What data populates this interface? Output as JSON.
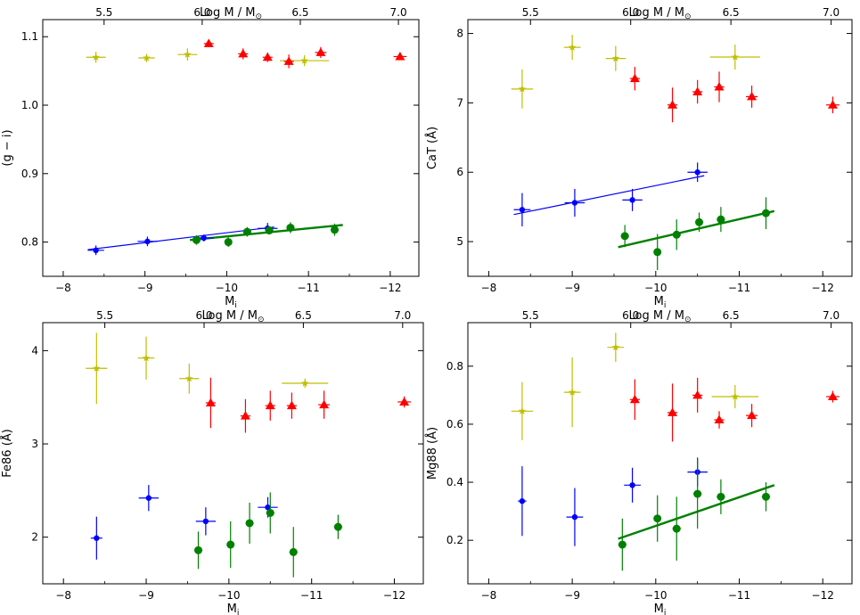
{
  "chart_data": [
    {
      "type": "scatter",
      "xlabel": "M",
      "xlabel_sub": "i",
      "ylabel": "(g − i)",
      "top_xlabel": "Log M / M",
      "top_xlabel_sub": "⊙",
      "xlim": [
        -7.75,
        -12.35
      ],
      "ylim": [
        0.75,
        1.125
      ],
      "xticks": [
        -8,
        -9,
        -10,
        -11,
        -12
      ],
      "xtick_labels": [
        "−8",
        "−9",
        "−10",
        "−11",
        "−12"
      ],
      "yticks": [
        0.8,
        0.9,
        1.0,
        1.1
      ],
      "ytick_labels": [
        "0.8",
        "0.9",
        "1.0",
        "1.1"
      ],
      "top_ticks": [
        {
          "x": -8.5,
          "label": "5.5"
        },
        {
          "x": -9.7,
          "label": "6.0"
        },
        {
          "x": -10.9,
          "label": "6.5"
        },
        {
          "x": -12.1,
          "label": "7.0"
        }
      ],
      "series": [
        {
          "name": "yellow",
          "color": "#bfbf00",
          "marker": "star",
          "points": [
            {
              "x": -8.4,
              "y": 1.07,
              "xerr": 0.12,
              "yerr": 0.008
            },
            {
              "x": -9.02,
              "y": 1.069,
              "xerr": 0.1,
              "yerr": 0.006
            },
            {
              "x": -9.52,
              "y": 1.074,
              "xerr": 0.12,
              "yerr": 0.009
            },
            {
              "x": -10.95,
              "y": 1.065,
              "xerr": 0.3,
              "yerr": 0.008
            }
          ]
        },
        {
          "name": "red",
          "color": "#ff0000",
          "marker": "triangle",
          "points": [
            {
              "x": -9.78,
              "y": 1.09,
              "xerr": 0.06,
              "yerr": 0.005
            },
            {
              "x": -10.2,
              "y": 1.075,
              "xerr": 0.06,
              "yerr": 0.008
            },
            {
              "x": -10.5,
              "y": 1.07,
              "xerr": 0.06,
              "yerr": 0.007
            },
            {
              "x": -10.76,
              "y": 1.064,
              "xerr": 0.06,
              "yerr": 0.01
            },
            {
              "x": -11.15,
              "y": 1.077,
              "xerr": 0.07,
              "yerr": 0.008
            },
            {
              "x": -12.12,
              "y": 1.071,
              "xerr": 0.08,
              "yerr": 0.004
            }
          ]
        },
        {
          "name": "blue",
          "color": "#0000ff",
          "marker": "circle",
          "points": [
            {
              "x": -8.4,
              "y": 0.788,
              "xerr": 0.1,
              "yerr": 0.007
            },
            {
              "x": -9.03,
              "y": 0.801,
              "xerr": 0.12,
              "yerr": 0.007
            },
            {
              "x": -9.72,
              "y": 0.806,
              "xerr": 0.12,
              "yerr": 0.005
            },
            {
              "x": -10.5,
              "y": 0.82,
              "xerr": 0.12,
              "yerr": 0.008
            }
          ]
        },
        {
          "name": "green",
          "color": "#008000",
          "marker": "circle",
          "points": [
            {
              "x": -9.63,
              "y": 0.803,
              "xerr": 0.05,
              "yerr": 0.007
            },
            {
              "x": -10.02,
              "y": 0.8,
              "xerr": 0.04,
              "yerr": 0.007
            },
            {
              "x": -10.25,
              "y": 0.815,
              "xerr": 0.05,
              "yerr": 0.007
            },
            {
              "x": -10.52,
              "y": 0.817,
              "xerr": 0.05,
              "yerr": 0.006
            },
            {
              "x": -10.78,
              "y": 0.821,
              "xerr": 0.05,
              "yerr": 0.008
            },
            {
              "x": -11.32,
              "y": 0.818,
              "xerr": 0.05,
              "yerr": 0.009
            }
          ]
        }
      ],
      "fits": [
        {
          "name": "blue-fit",
          "color": "#0000ff",
          "width": 1.2,
          "x": [
            -8.3,
            -10.58
          ],
          "y": [
            0.789,
            0.822
          ]
        },
        {
          "name": "green-fit",
          "color": "#008000",
          "width": 2.4,
          "x": [
            -9.55,
            -11.42
          ],
          "y": [
            0.803,
            0.825
          ]
        }
      ]
    },
    {
      "type": "scatter",
      "xlabel": "M",
      "xlabel_sub": "i",
      "ylabel": "CaT (Å)",
      "top_xlabel": "Log M / M",
      "top_xlabel_sub": "⊙",
      "xlim": [
        -7.75,
        -12.35
      ],
      "ylim": [
        4.5,
        8.2
      ],
      "xticks": [
        -8,
        -9,
        -10,
        -11,
        -12
      ],
      "xtick_labels": [
        "−8",
        "−9",
        "−10",
        "−11",
        "−12"
      ],
      "yticks": [
        5,
        6,
        7,
        8
      ],
      "ytick_labels": [
        "5",
        "6",
        "7",
        "8"
      ],
      "top_ticks": [
        {
          "x": -8.5,
          "label": "5.5"
        },
        {
          "x": -9.7,
          "label": "6.0"
        },
        {
          "x": -10.9,
          "label": "6.5"
        },
        {
          "x": -12.1,
          "label": "7.0"
        }
      ],
      "series": [
        {
          "name": "yellow",
          "color": "#bfbf00",
          "marker": "star",
          "points": [
            {
              "x": -8.4,
              "y": 7.2,
              "xerr": 0.13,
              "yerr": 0.28
            },
            {
              "x": -9.0,
              "y": 7.8,
              "xerr": 0.1,
              "yerr": 0.18
            },
            {
              "x": -9.52,
              "y": 7.64,
              "xerr": 0.12,
              "yerr": 0.18
            },
            {
              "x": -10.95,
              "y": 7.66,
              "xerr": 0.3,
              "yerr": 0.18
            }
          ]
        },
        {
          "name": "red",
          "color": "#ff0000",
          "marker": "triangle",
          "points": [
            {
              "x": -9.75,
              "y": 7.35,
              "xerr": 0.06,
              "yerr": 0.17
            },
            {
              "x": -10.2,
              "y": 6.97,
              "xerr": 0.06,
              "yerr": 0.25
            },
            {
              "x": -10.5,
              "y": 7.16,
              "xerr": 0.06,
              "yerr": 0.17
            },
            {
              "x": -10.76,
              "y": 7.23,
              "xerr": 0.06,
              "yerr": 0.22
            },
            {
              "x": -11.15,
              "y": 7.09,
              "xerr": 0.07,
              "yerr": 0.16
            },
            {
              "x": -12.12,
              "y": 6.97,
              "xerr": 0.08,
              "yerr": 0.12
            }
          ]
        },
        {
          "name": "blue",
          "color": "#0000ff",
          "marker": "circle",
          "points": [
            {
              "x": -8.4,
              "y": 5.46,
              "xerr": 0.1,
              "yerr": 0.24
            },
            {
              "x": -9.03,
              "y": 5.56,
              "xerr": 0.12,
              "yerr": 0.2
            },
            {
              "x": -9.72,
              "y": 5.6,
              "xerr": 0.12,
              "yerr": 0.16
            },
            {
              "x": -10.5,
              "y": 6.0,
              "xerr": 0.12,
              "yerr": 0.14
            }
          ]
        },
        {
          "name": "green",
          "color": "#008000",
          "marker": "circle",
          "points": [
            {
              "x": -9.63,
              "y": 5.08,
              "xerr": 0.05,
              "yerr": 0.16
            },
            {
              "x": -10.02,
              "y": 4.85,
              "xerr": 0.04,
              "yerr": 0.26
            },
            {
              "x": -10.25,
              "y": 5.1,
              "xerr": 0.05,
              "yerr": 0.22
            },
            {
              "x": -10.52,
              "y": 5.28,
              "xerr": 0.05,
              "yerr": 0.14
            },
            {
              "x": -10.78,
              "y": 5.32,
              "xerr": 0.05,
              "yerr": 0.18
            },
            {
              "x": -11.32,
              "y": 5.41,
              "xerr": 0.05,
              "yerr": 0.23
            }
          ]
        }
      ],
      "fits": [
        {
          "name": "blue-fit",
          "color": "#0000ff",
          "width": 1.2,
          "x": [
            -8.3,
            -10.58
          ],
          "y": [
            5.39,
            5.95
          ]
        },
        {
          "name": "green-fit",
          "color": "#008000",
          "width": 2.4,
          "x": [
            -9.55,
            -11.42
          ],
          "y": [
            4.92,
            5.44
          ]
        }
      ]
    },
    {
      "type": "scatter",
      "xlabel": "M",
      "xlabel_sub": "i",
      "ylabel": "Fe86 (Å)",
      "top_xlabel": "Log M / M",
      "top_xlabel_sub": "⊙",
      "xlim": [
        -7.75,
        -12.35
      ],
      "ylim": [
        1.5,
        4.3
      ],
      "xticks": [
        -8,
        -9,
        -10,
        -11,
        -12
      ],
      "xtick_labels": [
        "−8",
        "−9",
        "−10",
        "−11",
        "−12"
      ],
      "yticks": [
        2,
        3,
        4
      ],
      "ytick_labels": [
        "2",
        "3",
        "4"
      ],
      "top_ticks": [
        {
          "x": -8.5,
          "label": "5.5"
        },
        {
          "x": -9.7,
          "label": "6.0"
        },
        {
          "x": -10.9,
          "label": "6.5"
        },
        {
          "x": -12.1,
          "label": "7.0"
        }
      ],
      "series": [
        {
          "name": "yellow",
          "color": "#bfbf00",
          "marker": "star",
          "points": [
            {
              "x": -8.4,
              "y": 3.81,
              "xerr": 0.13,
              "yerr": 0.38
            },
            {
              "x": -9.0,
              "y": 3.92,
              "xerr": 0.1,
              "yerr": 0.23
            },
            {
              "x": -9.52,
              "y": 3.7,
              "xerr": 0.12,
              "yerr": 0.16
            },
            {
              "x": -10.92,
              "y": 3.65,
              "xerr": 0.28,
              "yerr": 0.05
            }
          ]
        },
        {
          "name": "red",
          "color": "#ff0000",
          "marker": "triangle",
          "points": [
            {
              "x": -9.78,
              "y": 3.44,
              "xerr": 0.06,
              "yerr": 0.27
            },
            {
              "x": -10.2,
              "y": 3.3,
              "xerr": 0.06,
              "yerr": 0.18
            },
            {
              "x": -10.5,
              "y": 3.41,
              "xerr": 0.06,
              "yerr": 0.16
            },
            {
              "x": -10.76,
              "y": 3.41,
              "xerr": 0.06,
              "yerr": 0.14
            },
            {
              "x": -11.15,
              "y": 3.42,
              "xerr": 0.07,
              "yerr": 0.15
            },
            {
              "x": -12.12,
              "y": 3.45,
              "xerr": 0.08,
              "yerr": 0.06
            }
          ]
        },
        {
          "name": "blue",
          "color": "#0000ff",
          "marker": "circle",
          "points": [
            {
              "x": -8.4,
              "y": 1.99,
              "xerr": 0.07,
              "yerr": 0.23
            },
            {
              "x": -9.03,
              "y": 2.42,
              "xerr": 0.12,
              "yerr": 0.14
            },
            {
              "x": -9.72,
              "y": 2.17,
              "xerr": 0.12,
              "yerr": 0.15
            },
            {
              "x": -10.47,
              "y": 2.32,
              "xerr": 0.12,
              "yerr": 0.11
            }
          ]
        },
        {
          "name": "green",
          "color": "#008000",
          "marker": "circle",
          "points": [
            {
              "x": -9.63,
              "y": 1.86,
              "xerr": 0.05,
              "yerr": 0.2
            },
            {
              "x": -10.02,
              "y": 1.92,
              "xerr": 0.04,
              "yerr": 0.25
            },
            {
              "x": -10.25,
              "y": 2.15,
              "xerr": 0.05,
              "yerr": 0.22
            },
            {
              "x": -10.5,
              "y": 2.26,
              "xerr": 0.05,
              "yerr": 0.22
            },
            {
              "x": -10.78,
              "y": 1.84,
              "xerr": 0.05,
              "yerr": 0.27
            },
            {
              "x": -11.32,
              "y": 2.11,
              "xerr": 0.05,
              "yerr": 0.13
            }
          ]
        }
      ],
      "fits": []
    },
    {
      "type": "scatter",
      "xlabel": "M",
      "xlabel_sub": "i",
      "ylabel": "Mg88 (Å)",
      "top_xlabel": "Log M / M",
      "top_xlabel_sub": "⊙",
      "xlim": [
        -7.75,
        -12.35
      ],
      "ylim": [
        0.05,
        0.95
      ],
      "xticks": [
        -8,
        -9,
        -10,
        -11,
        -12
      ],
      "xtick_labels": [
        "−8",
        "−9",
        "−10",
        "−11",
        "−12"
      ],
      "yticks": [
        0.2,
        0.4,
        0.6,
        0.8
      ],
      "ytick_labels": [
        "0.2",
        "0.4",
        "0.6",
        "0.8"
      ],
      "top_ticks": [
        {
          "x": -8.5,
          "label": "5.5"
        },
        {
          "x": -9.7,
          "label": "6.0"
        },
        {
          "x": -10.9,
          "label": "6.5"
        },
        {
          "x": -12.1,
          "label": "7.0"
        }
      ],
      "series": [
        {
          "name": "yellow",
          "color": "#bfbf00",
          "marker": "star",
          "points": [
            {
              "x": -8.4,
              "y": 0.645,
              "xerr": 0.13,
              "yerr": 0.1
            },
            {
              "x": -9.0,
              "y": 0.71,
              "xerr": 0.1,
              "yerr": 0.12
            },
            {
              "x": -9.52,
              "y": 0.865,
              "xerr": 0.1,
              "yerr": 0.05
            },
            {
              "x": -10.95,
              "y": 0.695,
              "xerr": 0.28,
              "yerr": 0.04
            }
          ]
        },
        {
          "name": "red",
          "color": "#ff0000",
          "marker": "triangle",
          "points": [
            {
              "x": -9.75,
              "y": 0.685,
              "xerr": 0.06,
              "yerr": 0.07
            },
            {
              "x": -10.2,
              "y": 0.64,
              "xerr": 0.06,
              "yerr": 0.1
            },
            {
              "x": -10.5,
              "y": 0.7,
              "xerr": 0.06,
              "yerr": 0.06
            },
            {
              "x": -10.76,
              "y": 0.615,
              "xerr": 0.06,
              "yerr": 0.03
            },
            {
              "x": -11.15,
              "y": 0.63,
              "xerr": 0.07,
              "yerr": 0.04
            },
            {
              "x": -12.12,
              "y": 0.695,
              "xerr": 0.08,
              "yerr": 0.02
            }
          ]
        },
        {
          "name": "blue",
          "color": "#0000ff",
          "marker": "circle",
          "points": [
            {
              "x": -8.4,
              "y": 0.335,
              "xerr": 0.05,
              "yerr": 0.12
            },
            {
              "x": -9.03,
              "y": 0.28,
              "xerr": 0.1,
              "yerr": 0.1
            },
            {
              "x": -9.72,
              "y": 0.39,
              "xerr": 0.1,
              "yerr": 0.06
            },
            {
              "x": -10.5,
              "y": 0.435,
              "xerr": 0.12,
              "yerr": 0.05
            }
          ]
        },
        {
          "name": "green",
          "color": "#008000",
          "marker": "circle",
          "points": [
            {
              "x": -9.6,
              "y": 0.185,
              "xerr": 0.05,
              "yerr": 0.09
            },
            {
              "x": -10.02,
              "y": 0.275,
              "xerr": 0.04,
              "yerr": 0.08
            },
            {
              "x": -10.25,
              "y": 0.24,
              "xerr": 0.05,
              "yerr": 0.11
            },
            {
              "x": -10.5,
              "y": 0.36,
              "xerr": 0.05,
              "yerr": 0.12
            },
            {
              "x": -10.78,
              "y": 0.35,
              "xerr": 0.05,
              "yerr": 0.06
            },
            {
              "x": -11.32,
              "y": 0.35,
              "xerr": 0.05,
              "yerr": 0.05
            }
          ]
        }
      ],
      "fits": [
        {
          "name": "green-fit",
          "color": "#008000",
          "width": 2.4,
          "x": [
            -9.55,
            -11.42
          ],
          "y": [
            0.205,
            0.39
          ]
        }
      ]
    }
  ]
}
